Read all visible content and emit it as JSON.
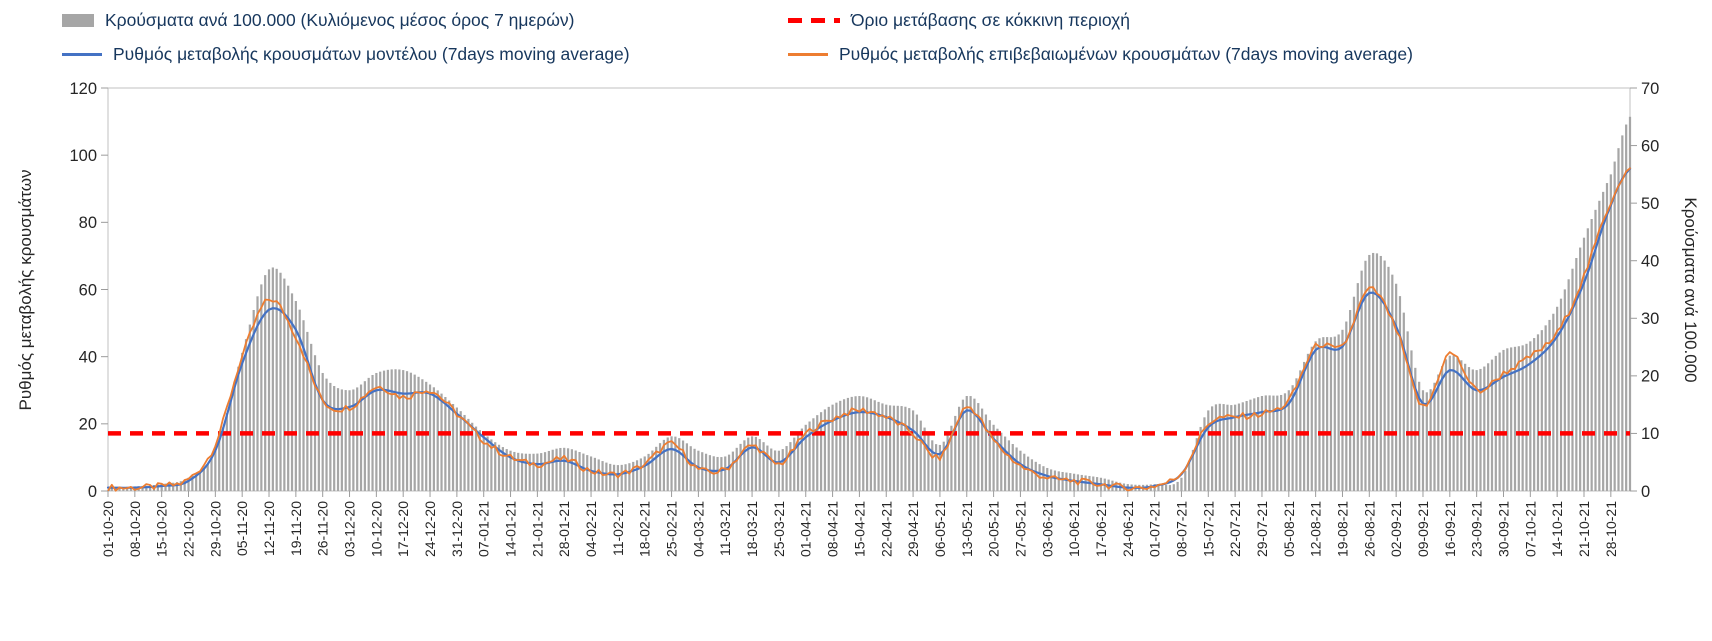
{
  "chart_data": {
    "type": "combo",
    "title": "",
    "legend_position": "top",
    "grid": false,
    "categories": [
      "01-10-20",
      "08-10-20",
      "15-10-20",
      "22-10-20",
      "29-10-20",
      "05-11-20",
      "12-11-20",
      "19-11-20",
      "26-11-20",
      "03-12-20",
      "10-12-20",
      "17-12-20",
      "24-12-20",
      "31-12-20",
      "07-01-21",
      "14-01-21",
      "21-01-21",
      "28-01-21",
      "04-02-21",
      "11-02-21",
      "18-02-21",
      "25-02-21",
      "04-03-21",
      "11-03-21",
      "18-03-21",
      "25-03-21",
      "01-04-21",
      "08-04-21",
      "15-04-21",
      "22-04-21",
      "29-04-21",
      "06-05-21",
      "13-05-21",
      "20-05-21",
      "27-05-21",
      "03-06-21",
      "10-06-21",
      "17-06-21",
      "24-06-21",
      "01-07-21",
      "08-07-21",
      "15-07-21",
      "22-07-21",
      "29-07-21",
      "05-08-21",
      "12-08-21",
      "19-08-21",
      "26-08-21",
      "02-09-21",
      "09-09-21",
      "16-09-21",
      "23-09-21",
      "30-09-21",
      "07-10-21",
      "14-10-21",
      "21-10-21",
      "28-10-21"
    ],
    "extra_days_after_last_label": 5,
    "axes": {
      "left": {
        "label": "Ρυθμός μεταβολής κρουσμάτων",
        "min": 0,
        "max": 120,
        "step": 20,
        "ticks": [
          0,
          20,
          40,
          60,
          80,
          100,
          120
        ]
      },
      "right": {
        "label": "Κρούσματα ανά 100.000",
        "min": 0,
        "max": 70,
        "step": 10,
        "ticks": [
          0,
          10,
          20,
          30,
          40,
          50,
          60,
          70
        ]
      }
    },
    "series": [
      {
        "id": "cases_per_100k",
        "type": "bar",
        "axis": "right",
        "name": "Κρούσματα ανά 100.000 (Κυλιόμενος μέσος όρος 7 ημερών)",
        "color": "#a6a6a6",
        "weekly_values": [
          0.6,
          0.8,
          1.2,
          2.3,
          7,
          24,
          38.5,
          33,
          20.5,
          17.5,
          20.5,
          21,
          18.5,
          14.5,
          10,
          7,
          6.5,
          7.5,
          6,
          4.5,
          6,
          9.5,
          7,
          6,
          9.5,
          7,
          11.5,
          15,
          16.5,
          15,
          14,
          8,
          16.5,
          11.5,
          7,
          4,
          3,
          2.3,
          1.2,
          1.2,
          2.3,
          14,
          15,
          16.5,
          17.5,
          26,
          28,
          41,
          36,
          17.5,
          23.5,
          21,
          24.5,
          26,
          32,
          44,
          55,
          65
        ]
      },
      {
        "id": "red_zone_threshold",
        "type": "threshold",
        "axis": "right",
        "name": "Όριο μετάβασης σε κόκκινη περιοχή",
        "color": "#ff0000",
        "value": 10
      },
      {
        "id": "model_rate_of_change",
        "type": "line",
        "axis": "left",
        "name": "Ρυθμός μεταβολής κρουσμάτων μοντέλου (7days moving average)",
        "color": "#4472c4",
        "noise": 0,
        "weekly_values": [
          1,
          1,
          1.5,
          3,
          12,
          38,
          54,
          48,
          27,
          25,
          30,
          29,
          29,
          23,
          16,
          10,
          8,
          9,
          6,
          5,
          7.5,
          12.5,
          7,
          6.5,
          13,
          8.5,
          16,
          21,
          23.5,
          22,
          18,
          11,
          24,
          15.5,
          8,
          4.5,
          3,
          2,
          1,
          1.5,
          5,
          19,
          22,
          23.5,
          26,
          42,
          43,
          59,
          49,
          26,
          36,
          30,
          34,
          38,
          46,
          62,
          85,
          96
        ]
      },
      {
        "id": "confirmed_rate_of_change",
        "type": "line",
        "axis": "left",
        "name": "Ρυθμός μεταβολής επιβεβαιωμένων κρουσμάτων (7days moving average)",
        "color": "#ed7d31",
        "noise": 1.0,
        "weekly_values": [
          1,
          1,
          1.5,
          3.5,
          14,
          40,
          57,
          46,
          27,
          25,
          31,
          28,
          30,
          23,
          15,
          10,
          8,
          9.5,
          6,
          5,
          8,
          14,
          6.5,
          6.5,
          13.5,
          8,
          17,
          21.5,
          24,
          22,
          17,
          10,
          25,
          15,
          7.5,
          4,
          3,
          2,
          1,
          1.5,
          5.5,
          20,
          22,
          23,
          27,
          43,
          43,
          60,
          48,
          25,
          41,
          30,
          35,
          40,
          47,
          64,
          86,
          96
        ]
      }
    ]
  }
}
